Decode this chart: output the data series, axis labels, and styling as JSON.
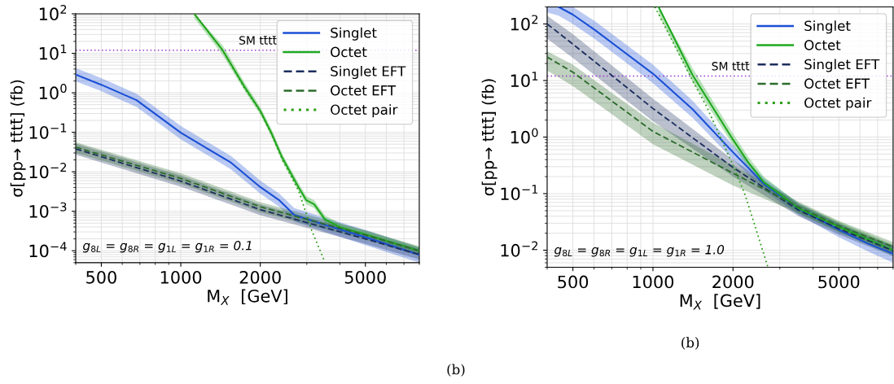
{
  "chart_data": [
    {
      "type": "line",
      "xlabel": "M$_{X}$  [GeV]",
      "ylabel": "σ[pp→ tt̄tt̄] (fb)",
      "log": "xy",
      "grid": true,
      "legend": "top right",
      "xlim": [
        400,
        8000
      ],
      "ylim": [
        5e-05,
        100
      ],
      "xticks": [
        500,
        1000,
        2000,
        5000
      ],
      "yticks": [
        {
          "value": 0.0001,
          "label": "10$^{−4}$"
        },
        {
          "value": 0.001,
          "label": "10$^{−3}$"
        },
        {
          "value": 0.01,
          "label": "10$^{−2}$"
        },
        {
          "value": 0.1,
          "label": "10$^{−1}$"
        },
        {
          "value": 1,
          "label": "10$^{0}$"
        },
        {
          "value": 10,
          "label": "10$^{1}$"
        },
        {
          "value": 100,
          "label": "10$^{2}$"
        }
      ],
      "series": [
        {
          "name": "Singlet",
          "color": "#1a4fd6",
          "line_style": "solid",
          "x": [
            400,
            500,
            680,
            1000,
            1220,
            1550,
            2000,
            2360,
            2690,
            3520,
            5000,
            8000
          ],
          "values": [
            2.9,
            1.6,
            0.65,
            0.098,
            0.044,
            0.017,
            0.0041,
            0.0019,
            0.00081,
            0.00045,
            0.00022,
            7.9e-05
          ],
          "lower": [
            1.95,
            1.1,
            0.44,
            0.066,
            0.03,
            0.0115,
            0.0028,
            0.0013,
            0.00055,
            0.0003,
            0.00014,
            5e-05
          ],
          "upper": [
            4.2,
            2.35,
            0.95,
            0.145,
            0.065,
            0.025,
            0.006,
            0.0028,
            0.0012,
            0.00068,
            0.00034,
            0.00012
          ]
        },
        {
          "name": "Octet",
          "color": "#1fa81f",
          "line_style": "solid",
          "x": [
            1125,
            1440,
            1740,
            2000,
            2200,
            2420,
            2790,
            2990,
            3200,
            3520,
            4060,
            5000,
            8000
          ],
          "values": [
            100,
            12,
            1.44,
            0.35,
            0.098,
            0.023,
            0.0041,
            0.0019,
            0.0015,
            0.00062,
            0.00038,
            0.00026,
            0.0001
          ],
          "lower": [
            78,
            9,
            1.15,
            0.28,
            0.078,
            0.018,
            0.0033,
            0.0015,
            0.0012,
            0.0005,
            0.00031,
            0.00021,
            8e-05
          ],
          "upper": [
            100,
            16,
            1.85,
            0.44,
            0.125,
            0.029,
            0.0052,
            0.0024,
            0.0019,
            0.00078,
            0.00047,
            0.00032,
            0.000125
          ]
        },
        {
          "name": "Singlet EFT",
          "color": "#1c2e5e",
          "line_style": "dashed",
          "x": [
            400,
            1000,
            2000,
            5000,
            8000
          ],
          "values": [
            0.038,
            0.0058,
            0.0011,
            0.0002,
            8e-05
          ],
          "lower": [
            0.027,
            0.0042,
            0.0008,
            0.00015,
            6e-05
          ],
          "upper": [
            0.052,
            0.008,
            0.0015,
            0.00027,
            0.00011
          ]
        },
        {
          "name": "Octet EFT",
          "color": "#2c6b2c",
          "line_style": "dashed",
          "x": [
            400,
            1000,
            2000,
            5000,
            8000
          ],
          "values": [
            0.042,
            0.0068,
            0.0013,
            0.00025,
            0.0001
          ],
          "lower": [
            0.03,
            0.005,
            0.00095,
            0.00019,
            7.5e-05
          ],
          "upper": [
            0.056,
            0.0092,
            0.0017,
            0.00033,
            0.00013
          ]
        },
        {
          "name": "Octet pair",
          "color": "#2e9e1a",
          "line_style": "dotted",
          "x": [
            1125,
            1440,
            1740,
            2000,
            2200,
            2420,
            2800,
            3130,
            3500
          ],
          "values": [
            100,
            12,
            1.35,
            0.33,
            0.092,
            0.021,
            0.0032,
            0.00033,
            5.5e-05
          ]
        }
      ],
      "ref_lines": [
        {
          "axis": "y",
          "value": 12,
          "label": "SM tt̄tt̄",
          "color": "#9933cc",
          "line_style": "dotted"
        }
      ],
      "annotations": [
        "g$_{8L}$ = g$_{8R}$ = g$_{1L}$ = g$_{1R}$ = 0.1",
        "(b)"
      ]
    },
    {
      "type": "line",
      "xlabel": "M$_{X}$  [GeV]",
      "ylabel": "σ[pp→ tt̄tt̄] (fb)",
      "log": "xy",
      "grid": true,
      "legend": "top right",
      "xlim": [
        400,
        8000
      ],
      "ylim": [
        0.005,
        200
      ],
      "xticks": [
        500,
        1000,
        2000,
        5000
      ],
      "yticks": [
        {
          "value": 0.01,
          "label": "10$^{−2}$"
        },
        {
          "value": 0.1,
          "label": "10$^{−1}$"
        },
        {
          "value": 1,
          "label": "10$^{0}$"
        },
        {
          "value": 10,
          "label": "10$^{1}$"
        },
        {
          "value": 100,
          "label": "10$^{2}$"
        }
      ],
      "series": [
        {
          "name": "Singlet",
          "color": "#1a4fd6",
          "line_style": "solid",
          "x": [
            400,
            442,
            500,
            605,
            1000,
            1409,
            2000,
            2610,
            3530,
            5000,
            6450,
            8000
          ],
          "values": [
            null,
            200,
            146,
            78,
            13.2,
            3.1,
            0.54,
            0.15,
            0.054,
            0.023,
            0.013,
            0.0087
          ],
          "lower": [
            160,
            140,
            100,
            54,
            9,
            2.2,
            0.4,
            0.115,
            0.042,
            0.017,
            0.0095,
            0.006
          ],
          "upper": [
            200,
            200,
            200,
            112,
            19,
            4.4,
            0.72,
            0.19,
            0.068,
            0.03,
            0.017,
            0.012
          ]
        },
        {
          "name": "Octet",
          "color": "#1fa81f",
          "line_style": "solid",
          "x": [
            1050,
            1409,
            2000,
            2280,
            2610,
            3530,
            5000,
            8000
          ],
          "values": [
            200,
            12.5,
            0.9,
            0.36,
            0.16,
            0.055,
            0.026,
            0.01
          ],
          "lower": [
            150,
            9.5,
            0.72,
            0.29,
            0.13,
            0.045,
            0.021,
            0.008
          ],
          "upper": [
            200,
            16.5,
            1.15,
            0.45,
            0.2,
            0.067,
            0.032,
            0.0125
          ]
        },
        {
          "name": "Singlet EFT",
          "color": "#1c2e5e",
          "line_style": "dashed",
          "x": [
            400,
            500,
            1000,
            2000,
            3530,
            5000,
            8000
          ],
          "values": [
            100,
            44,
            3.2,
            0.29,
            0.051,
            0.024,
            0.0098
          ],
          "lower": [
            55,
            25,
            1.9,
            0.2,
            0.04,
            0.019,
            0.0078
          ],
          "upper": [
            140,
            66,
            4.8,
            0.4,
            0.064,
            0.03,
            0.012
          ]
        },
        {
          "name": "Octet EFT",
          "color": "#2c6b2c",
          "line_style": "dashed",
          "x": [
            400,
            500,
            1000,
            2000,
            3530,
            5000,
            8000
          ],
          "values": [
            26,
            14,
            1.26,
            0.23,
            0.058,
            0.027,
            0.0115
          ],
          "lower": [
            15,
            8,
            0.75,
            0.14,
            0.045,
            0.021,
            0.009
          ],
          "upper": [
            33,
            19,
            1.8,
            0.32,
            0.072,
            0.033,
            0.014
          ]
        },
        {
          "name": "Octet pair",
          "color": "#2e9e1a",
          "line_style": "dotted",
          "x": [
            1017,
            1409,
            1590,
            2000,
            2230,
            2700
          ],
          "values": [
            200,
            10,
            3.5,
            0.32,
            0.09,
            0.0052
          ]
        }
      ],
      "ref_lines": [
        {
          "axis": "y",
          "value": 12,
          "label": "SM tt̄tt̄",
          "color": "#9933cc",
          "line_style": "dotted"
        }
      ],
      "annotations": [
        "g$_{8L}$ = g$_{8R}$ = g$_{1L}$ = g$_{1R}$ = 1.0",
        "(b)"
      ]
    }
  ]
}
